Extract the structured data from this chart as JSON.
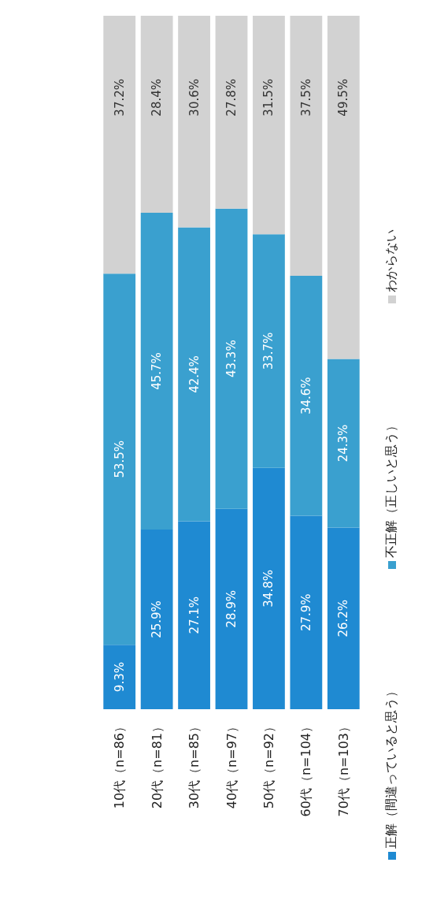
{
  "chart_data": {
    "type": "bar",
    "stacked": true,
    "categories": [
      "10代（n=86）",
      "20代（n=81）",
      "30代（n=85）",
      "40代（n=97）",
      "50代（n=92）",
      "60代（n=104）",
      "70代（n=103）"
    ],
    "ylim": [
      0,
      100
    ],
    "tick_labels": "x",
    "grid": false,
    "legend": "bottom",
    "series": [
      {
        "name": "正解（間違っていると思う）",
        "color": "#1f8ad2",
        "values": [
          9.3,
          25.9,
          27.1,
          28.9,
          34.8,
          27.9,
          26.2
        ],
        "value_labels": [
          "9.3%",
          "25.9%",
          "27.1%",
          "28.9%",
          "34.8%",
          "27.9%",
          "26.2%"
        ]
      },
      {
        "name": "不正解（正しいと思う）",
        "color": "#3aa0cf",
        "values": [
          53.5,
          45.7,
          42.4,
          43.3,
          33.7,
          34.6,
          24.3
        ],
        "value_labels": [
          "53.5%",
          "45.7%",
          "42.4%",
          "43.3%",
          "33.7%",
          "34.6%",
          "24.3%"
        ]
      },
      {
        "name": "わからない",
        "color": "#d2d2d2",
        "values": [
          37.2,
          28.4,
          30.6,
          27.8,
          31.5,
          37.5,
          49.5
        ],
        "value_labels": [
          "37.2%",
          "28.4%",
          "30.6%",
          "27.8%",
          "31.5%",
          "37.5%",
          "49.5%"
        ]
      }
    ]
  }
}
